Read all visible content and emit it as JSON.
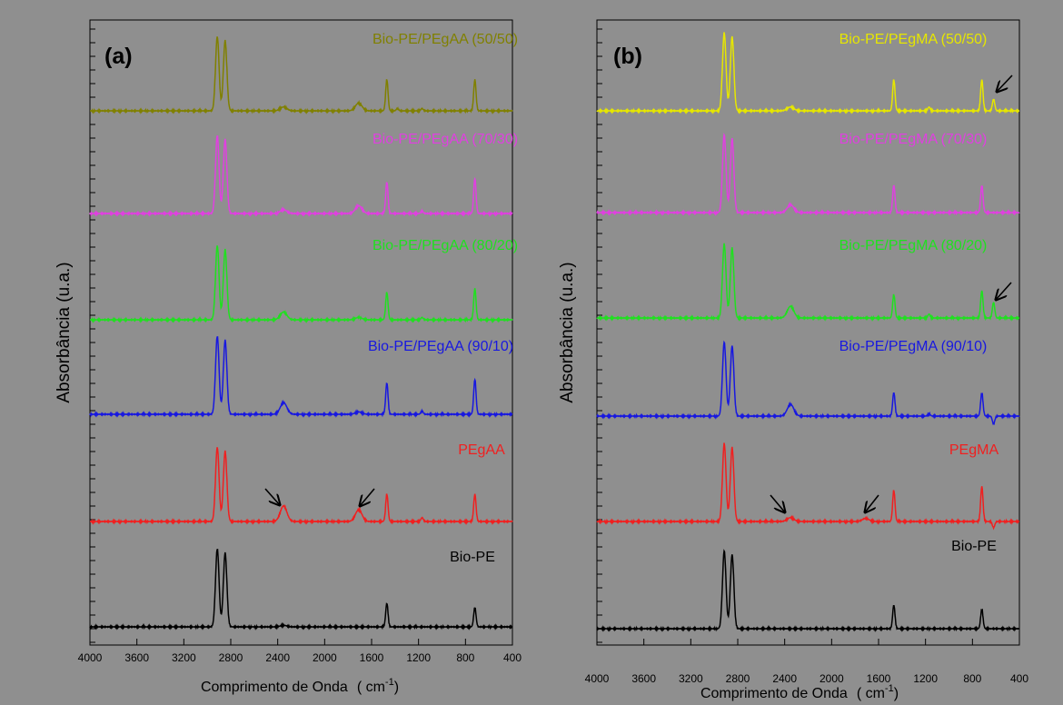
{
  "chart_data": [
    {
      "type": "line",
      "panel_label": "(a)",
      "xlabel": "Comprimento de Onda",
      "xlabel_unit_prefix": "( cm",
      "xlabel_unit_exp": "-1",
      "xlabel_unit_suffix": ")",
      "ylabel": "Absorbância (u.a.)",
      "xlim": [
        4000,
        400
      ],
      "x_reversed": true,
      "xticks": [
        4000,
        3600,
        3200,
        2800,
        2400,
        2000,
        1600,
        1200,
        800,
        400
      ],
      "xtick_labels": [
        "4000",
        "3600",
        "3200",
        "2800",
        "2400",
        "2000",
        "1600",
        "1200",
        "800",
        "400"
      ],
      "grid": false,
      "series": [
        {
          "name": "Bio-PE/PEgAA (50/50)",
          "color": "#808000",
          "peaks": [
            [
              2915,
              0.95
            ],
            [
              2848,
              0.9
            ],
            [
              2350,
              0.05
            ],
            [
              1710,
              0.1
            ],
            [
              1470,
              0.4
            ],
            [
              1380,
              0.03
            ],
            [
              1170,
              0.03
            ],
            [
              720,
              0.4
            ]
          ]
        },
        {
          "name": "Bio-PE/PEgAA (70/30)",
          "color": "#e040e0",
          "peaks": [
            [
              2915,
              1.0
            ],
            [
              2848,
              0.95
            ],
            [
              2350,
              0.05
            ],
            [
              1710,
              0.1
            ],
            [
              1470,
              0.4
            ],
            [
              1170,
              0.03
            ],
            [
              720,
              0.45
            ]
          ]
        },
        {
          "name": "Bio-PE/PEgAA (80/20)",
          "color": "#20e020",
          "peaks": [
            [
              2915,
              0.95
            ],
            [
              2848,
              0.9
            ],
            [
              2350,
              0.1
            ],
            [
              1710,
              0.03
            ],
            [
              1470,
              0.35
            ],
            [
              1170,
              0.03
            ],
            [
              720,
              0.4
            ]
          ]
        },
        {
          "name": "Bio-PE/PEgAA (90/10)",
          "color": "#1818e0",
          "peaks": [
            [
              2915,
              1.0
            ],
            [
              2848,
              0.95
            ],
            [
              2350,
              0.15
            ],
            [
              1710,
              0.03
            ],
            [
              1470,
              0.4
            ],
            [
              1170,
              0.04
            ],
            [
              720,
              0.45
            ]
          ]
        },
        {
          "name": "PEgAA",
          "color": "#f02020",
          "peaks": [
            [
              2915,
              0.95
            ],
            [
              2848,
              0.9
            ],
            [
              2350,
              0.2
            ],
            [
              1710,
              0.15
            ],
            [
              1470,
              0.35
            ],
            [
              1170,
              0.05
            ],
            [
              720,
              0.35
            ]
          ]
        },
        {
          "name": "Bio-PE",
          "color": "#000000",
          "peaks": [
            [
              2915,
              1.0
            ],
            [
              2848,
              0.95
            ],
            [
              2350,
              0.02
            ],
            [
              1470,
              0.3
            ],
            [
              720,
              0.25
            ]
          ]
        }
      ]
    },
    {
      "type": "line",
      "panel_label": "(b)",
      "xlabel": "Comprimento de Onda",
      "xlabel_unit_prefix": "( cm",
      "xlabel_unit_exp": "-1",
      "xlabel_unit_suffix": ")",
      "ylabel": "Absorbância (u.a.)",
      "xlim": [
        4000,
        400
      ],
      "x_reversed": true,
      "xticks": [
        4000,
        3600,
        3200,
        2800,
        2400,
        2000,
        1600,
        1200,
        800,
        400
      ],
      "xtick_labels": [
        "4000",
        "3600",
        "3200",
        "2800",
        "2400",
        "2000",
        "1600",
        "1200",
        "800",
        "400"
      ],
      "grid": false,
      "series": [
        {
          "name": "Bio-PE/PEgMA (50/50)",
          "color": "#e6e600",
          "peaks": [
            [
              2915,
              1.0
            ],
            [
              2848,
              0.95
            ],
            [
              2350,
              0.05
            ],
            [
              1470,
              0.4
            ],
            [
              1170,
              0.05
            ],
            [
              720,
              0.4
            ],
            [
              620,
              0.15
            ]
          ]
        },
        {
          "name": "Bio-PE/PEgMA (70/30)",
          "color": "#e040e0",
          "peaks": [
            [
              2915,
              1.0
            ],
            [
              2848,
              0.95
            ],
            [
              2350,
              0.1
            ],
            [
              1470,
              0.35
            ],
            [
              720,
              0.35
            ]
          ]
        },
        {
          "name": "Bio-PE/PEgMA (80/20)",
          "color": "#20e020",
          "peaks": [
            [
              2915,
              0.95
            ],
            [
              2848,
              0.9
            ],
            [
              2350,
              0.15
            ],
            [
              1470,
              0.3
            ],
            [
              1170,
              0.05
            ],
            [
              720,
              0.35
            ],
            [
              620,
              0.2
            ]
          ]
        },
        {
          "name": "Bio-PE/PEgMA (90/10)",
          "color": "#1818e0",
          "peaks": [
            [
              2915,
              0.95
            ],
            [
              2848,
              0.9
            ],
            [
              2350,
              0.15
            ],
            [
              1470,
              0.3
            ],
            [
              1170,
              0.03
            ],
            [
              720,
              0.3
            ],
            [
              620,
              -0.1
            ]
          ]
        },
        {
          "name": "PEgMA",
          "color": "#f02020",
          "peaks": [
            [
              2915,
              1.0
            ],
            [
              2848,
              0.95
            ],
            [
              2350,
              0.05
            ],
            [
              1710,
              0.04
            ],
            [
              1470,
              0.4
            ],
            [
              720,
              0.45
            ],
            [
              620,
              -0.08
            ]
          ]
        },
        {
          "name": "Bio-PE",
          "color": "#000000",
          "peaks": [
            [
              2915,
              1.0
            ],
            [
              2848,
              0.95
            ],
            [
              1470,
              0.3
            ],
            [
              720,
              0.25
            ]
          ]
        }
      ]
    }
  ]
}
